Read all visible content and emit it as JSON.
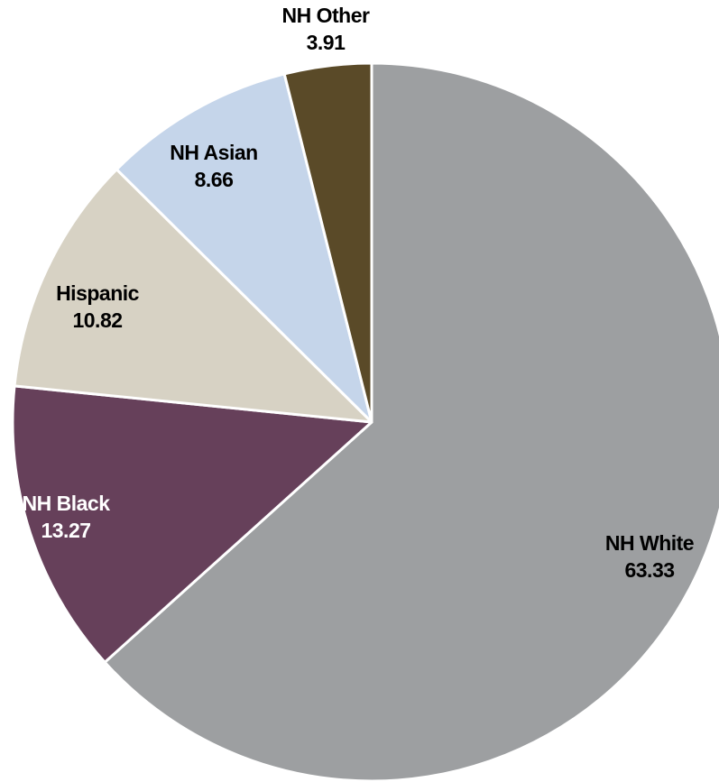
{
  "chart_data": {
    "type": "pie",
    "title": "",
    "slices": [
      {
        "label": "NH White",
        "value": 63.33,
        "display_value": "63.33",
        "color": "#9D9FA1",
        "text_color": "#000000"
      },
      {
        "label": "NH Black",
        "value": 13.27,
        "display_value": "13.27",
        "color": "#66405A",
        "text_color": "#FFFFFF"
      },
      {
        "label": "Hispanic",
        "value": 10.82,
        "display_value": "10.82",
        "color": "#D7D2C4",
        "text_color": "#000000"
      },
      {
        "label": "NH Asian",
        "value": 8.66,
        "display_value": "8.66",
        "color": "#C5D5EA",
        "text_color": "#000000"
      },
      {
        "label": "NH Other",
        "value": 3.91,
        "display_value": "3.91",
        "color": "#5A4A28",
        "text_color": "#000000"
      }
    ],
    "start_angle_deg": 0,
    "direction": "clockwise",
    "legend": "none",
    "labels": "on-slice"
  }
}
